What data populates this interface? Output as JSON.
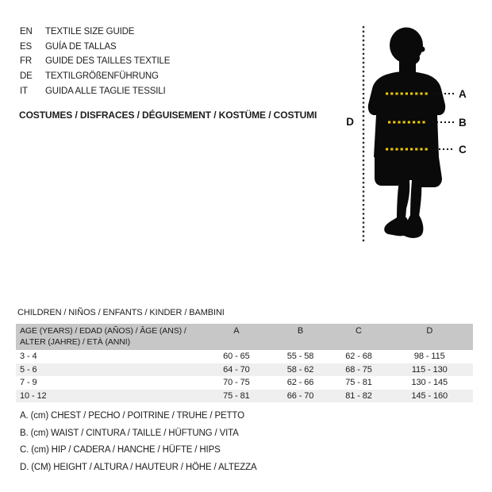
{
  "colors": {
    "accent_yellow": "#eec900",
    "silhouette_black": "#0a0a0a",
    "table_header_bg": "#c7c7c7",
    "row_stripe_bg": "#efefef",
    "text": "#1c1c1c"
  },
  "header": {
    "languages": [
      {
        "code": "EN",
        "label": "TEXTILE SIZE GUIDE"
      },
      {
        "code": "ES",
        "label": "GUÍA DE TALLAS"
      },
      {
        "code": "FR",
        "label": "GUIDE DES TAILLES TEXTILE"
      },
      {
        "code": "DE",
        "label": "TEXTILGRÖßENFÜHRUNG"
      },
      {
        "code": "IT",
        "label": "GUIDA ALLE TAGLIE TESSILI"
      }
    ],
    "title": "COSTUMES / DISFRACES / DÉGUISEMENT / KOSTÜME / COSTUMI"
  },
  "figure": {
    "height_label": "D",
    "chest_label": "A",
    "waist_label": "B",
    "hip_label": "C"
  },
  "table": {
    "section_title": "CHILDREN / NIÑOS / ENFANTS / KINDER / BAMBINI",
    "age_header": "AGE (YEARS) / EDAD (AÑOS) / ÂGE (ANS) / ALTER (JAHRE) / ETÀ (ANNI)",
    "columns": [
      "A",
      "B",
      "C",
      "D"
    ],
    "rows": [
      {
        "age": "3 - 4",
        "a": "60 - 65",
        "b": "55 - 58",
        "c": "62 - 68",
        "d": "98 - 115"
      },
      {
        "age": "5 - 6",
        "a": "64 - 70",
        "b": "58 - 62",
        "c": "68 - 75",
        "d": "115 - 130"
      },
      {
        "age": "7 - 9",
        "a": "70 - 75",
        "b": "62 - 66",
        "c": "75 - 81",
        "d": "130 - 145"
      },
      {
        "age": "10 - 12",
        "a": "75 - 81",
        "b": "66 - 70",
        "c": "81 - 82",
        "d": "145 - 160"
      }
    ]
  },
  "footnotes": [
    "A. (cm) CHEST / PECHO / POITRINE / TRUHE / PETTO",
    "B. (cm) WAIST / CINTURA / TAILLE / HÜFTUNG / VITA",
    "C. (cm) HIP / CADERA / HANCHE / HÜFTE / HIPS",
    "D. (CM) HEIGHT / ALTURA / HAUTEUR / HÖHE / ALTEZZA"
  ]
}
